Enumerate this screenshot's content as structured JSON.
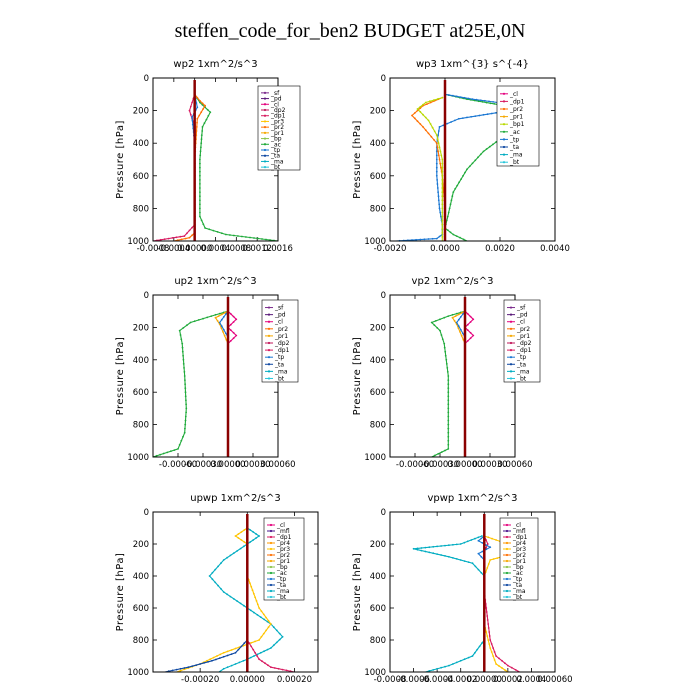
{
  "title": "steffen_code_for_ben2  BUDGET at25E,0N",
  "colors": {
    "sf": "#7b2a8c",
    "pd": "#5a1a7a",
    "cl": "#e4007c",
    "dp1": "#d81b60",
    "dp2": "#c2185b",
    "dp4": "#e0245e",
    "pr1": "#f6a800",
    "pr2": "#ff6f00",
    "pr3": "#ffc400",
    "pr4": "#ff9800",
    "bp": "#8bc34a",
    "bp1": "#b8d900",
    "ac": "#1faa3a",
    "tp": "#1976d2",
    "ta": "#0d47a1",
    "ma": "#00acc1",
    "bt": "#26c6da",
    "mfl": "#4a148c"
  },
  "chart_data": [
    {
      "type": "line",
      "title": "wp2   1xm^2/s^3",
      "ylabel": "Pressure  [hPa]",
      "xlim": [
        -0.0008,
        0.0016
      ],
      "ylim": [
        1000,
        0
      ],
      "xticks": [
        -0.0008,
        -0.0004,
        0,
        0.0004,
        0.0008,
        0.0012,
        0.0016
      ],
      "xtick_labels": [
        "-0.0008",
        "-0.0004",
        "0.00000",
        "0.0004",
        "0.0008",
        "0.0012",
        "0.0016"
      ],
      "yticks": [
        0,
        200,
        400,
        600,
        800,
        1000
      ],
      "legend": [
        "_sf",
        "_pd",
        "_cl",
        "_dp2",
        "_dp1",
        "_pr3",
        "_pr2",
        "_pr1",
        "_bp",
        "_ac",
        "_tp",
        "_ta",
        "_ma",
        "_bt"
      ],
      "series": [
        {
          "name": "_bp",
          "key": "ac",
          "x": [
            0,
            0.0001,
            0.0003,
            0.00015,
            0.0001,
            0.0001,
            0.0001,
            0.0002,
            0.0006,
            0.0016
          ],
          "y": [
            100,
            150,
            210,
            300,
            500,
            700,
            850,
            920,
            960,
            1000
          ]
        },
        {
          "name": "_pr2",
          "key": "pr2",
          "x": [
            0,
            0.0001,
            0.0002,
            5e-05,
            0,
            0,
            0,
            -0.0001,
            -0.0004
          ],
          "y": [
            100,
            140,
            170,
            250,
            500,
            800,
            950,
            980,
            1000
          ]
        },
        {
          "name": "_dp1",
          "key": "dp1",
          "x": [
            0,
            -5e-05,
            -0.0001,
            0,
            0,
            0,
            -0.0002,
            -0.0008
          ],
          "y": [
            100,
            150,
            200,
            300,
            600,
            900,
            970,
            1000
          ]
        },
        {
          "name": "_tp",
          "key": "tp",
          "x": [
            0,
            5e-05,
            -5e-05,
            0,
            0
          ],
          "y": [
            100,
            180,
            240,
            400,
            1000
          ]
        },
        {
          "name": "_sf",
          "key": "sf",
          "x": [
            0,
            0,
            0,
            0
          ],
          "y": [
            100,
            400,
            800,
            1000
          ]
        }
      ]
    },
    {
      "type": "line",
      "title": "wp3   1xm^{3} s^{-4}",
      "ylabel": "Pressure  [hPa]",
      "xlim": [
        -0.002,
        0.004
      ],
      "ylim": [
        1000,
        0
      ],
      "xticks": [
        -0.002,
        0,
        0.002,
        0.004
      ],
      "xtick_labels": [
        "-0.0020",
        "0.0000",
        "0.0020",
        "0.0040"
      ],
      "yticks": [
        0,
        200,
        400,
        600,
        800,
        1000
      ],
      "legend": [
        "_cl",
        "_dp1",
        "_pr2",
        "_pr1",
        "_bp1",
        "_ac",
        "_tp",
        "_ta",
        "_ma",
        "_bt"
      ],
      "series": [
        {
          "name": "_ac",
          "key": "ac",
          "x": [
            0,
            0.0008,
            0.0025,
            0.0031,
            0.0028,
            0.0022,
            0.0014,
            0.0008,
            0.0003,
            0.0001,
            0,
            0.0003,
            0.0008
          ],
          "y": [
            100,
            130,
            180,
            230,
            280,
            350,
            450,
            560,
            700,
            850,
            920,
            960,
            1000
          ]
        },
        {
          "name": "_tp",
          "key": "tp",
          "x": [
            0,
            0.001,
            0.0028,
            0.002,
            0.0005,
            -0.0002,
            -0.0003,
            -0.0003,
            -0.0002,
            -0.0001,
            -0.0001,
            -0.0003,
            -0.0018
          ],
          "y": [
            100,
            130,
            170,
            210,
            250,
            300,
            400,
            600,
            800,
            900,
            960,
            985,
            1000
          ]
        },
        {
          "name": "_pr2",
          "key": "pr2",
          "x": [
            -0.0001,
            -0.0008,
            -0.0012,
            -0.0008,
            -0.0003,
            -0.0001,
            0,
            0
          ],
          "y": [
            120,
            170,
            230,
            300,
            400,
            600,
            800,
            1000
          ]
        },
        {
          "name": "_bp1",
          "key": "bp1",
          "x": [
            -0.0001,
            -0.0007,
            -0.001,
            -0.0006,
            -0.0003,
            -0.0001,
            -0.0001
          ],
          "y": [
            120,
            150,
            190,
            260,
            350,
            500,
            1000
          ]
        },
        {
          "name": "_cl",
          "key": "cl",
          "x": [
            0,
            0,
            0,
            0
          ],
          "y": [
            100,
            400,
            800,
            1000
          ]
        }
      ]
    },
    {
      "type": "line",
      "title": "up2   1xm^2/s^3",
      "ylabel": "Pressure  [hPa]",
      "xlim": [
        -0.0009,
        0.0006
      ],
      "ylim": [
        1000,
        0
      ],
      "xticks": [
        -0.0006,
        -0.0003,
        0,
        0.0003,
        0.0006
      ],
      "xtick_labels": [
        "-0.00060",
        "-0.00030",
        "0.00000",
        "0.00030",
        "0.00060"
      ],
      "yticks": [
        0,
        200,
        400,
        600,
        800,
        1000
      ],
      "legend": [
        "_sf",
        "_pd",
        "_cl",
        "_pr2",
        "_pr1",
        "_dp2",
        "_dp1",
        "_tp",
        "_ta",
        "_ma",
        "_bt"
      ],
      "series": [
        {
          "name": "_dp2",
          "key": "ac",
          "x": [
            0,
            -0.0002,
            -0.00045,
            -0.00058,
            -0.00055,
            -0.00052,
            -0.0005,
            -0.00052,
            -0.0006,
            -0.0009
          ],
          "y": [
            100,
            130,
            170,
            220,
            300,
            500,
            700,
            850,
            950,
            1000
          ]
        },
        {
          "name": "_pr1",
          "key": "pr1",
          "x": [
            0,
            -0.00015,
            -0.0001,
            0,
            0
          ],
          "y": [
            100,
            140,
            180,
            300,
            1000
          ]
        },
        {
          "name": "_tp",
          "key": "tp",
          "x": [
            0,
            -0.0001,
            0,
            0
          ],
          "y": [
            100,
            170,
            260,
            1000
          ]
        },
        {
          "name": "_cl",
          "key": "cl",
          "x": [
            0,
            0.0001,
            0,
            0.0001,
            0
          ],
          "y": [
            100,
            150,
            200,
            250,
            300
          ]
        },
        {
          "name": "_sf",
          "key": "sf",
          "x": [
            0,
            0,
            0,
            0
          ],
          "y": [
            100,
            400,
            800,
            1000
          ]
        }
      ]
    },
    {
      "type": "line",
      "title": "vp2   1xm^2/s^3",
      "ylabel": "Pressure  [hPa]",
      "xlim": [
        -0.0009,
        0.0006
      ],
      "ylim": [
        1000,
        0
      ],
      "xticks": [
        -0.0006,
        -0.0003,
        0,
        0.0003,
        0.0006
      ],
      "xtick_labels": [
        "-0.00060",
        "-0.00030",
        "0.00000",
        "0.00030",
        "0.00060"
      ],
      "yticks": [
        0,
        200,
        400,
        600,
        800,
        1000
      ],
      "legend": [
        "_sf",
        "_pd",
        "_cl",
        "_pr2",
        "_pr1",
        "_dp2",
        "_dp1",
        "_tp",
        "_ta",
        "_ma",
        "_bt"
      ],
      "series": [
        {
          "name": "_dp2",
          "key": "ac",
          "x": [
            0,
            -0.0002,
            -0.0004,
            -0.0003,
            -0.00025,
            -0.0002,
            -0.0002,
            -0.0002,
            -0.0002,
            -0.0004
          ],
          "y": [
            100,
            130,
            170,
            220,
            300,
            500,
            700,
            850,
            950,
            1000
          ]
        },
        {
          "name": "_pr1",
          "key": "pr1",
          "x": [
            0,
            -0.00015,
            -0.0001,
            0,
            0
          ],
          "y": [
            100,
            140,
            180,
            300,
            1000
          ]
        },
        {
          "name": "_tp",
          "key": "tp",
          "x": [
            0,
            -0.0001,
            0,
            0
          ],
          "y": [
            100,
            170,
            260,
            1000
          ]
        },
        {
          "name": "_cl",
          "key": "cl",
          "x": [
            0,
            0.0001,
            0,
            0.0001,
            0
          ],
          "y": [
            100,
            150,
            200,
            250,
            300
          ]
        },
        {
          "name": "_sf",
          "key": "sf",
          "x": [
            0,
            0,
            0,
            0
          ],
          "y": [
            100,
            400,
            800,
            1000
          ]
        }
      ]
    },
    {
      "type": "line",
      "title": "upwp   1xm^2/s^3",
      "ylabel": "Pressure  [hPa]",
      "xlim": [
        -0.0004,
        0.0003
      ],
      "ylim": [
        1000,
        0
      ],
      "xticks": [
        -0.0002,
        0,
        0.0002
      ],
      "xtick_labels": [
        "-0.00020",
        "0.00000",
        "0.00020"
      ],
      "yticks": [
        0,
        200,
        400,
        600,
        800,
        1000
      ],
      "legend": [
        "_cl",
        "_mfl",
        "_dp1",
        "_pr4",
        "_pr3",
        "_pr2",
        "_pr1",
        "_bp",
        "_ac",
        "_tp",
        "_ta",
        "_ma",
        "_bt"
      ],
      "series": [
        {
          "name": "_ma",
          "key": "ma",
          "x": [
            0,
            5e-05,
            0,
            -0.0001,
            -0.00016,
            -0.0001,
            0,
            0.0001,
            0.00015,
            0.0001,
            0,
            -0.0001,
            -0.00012
          ],
          "y": [
            100,
            150,
            200,
            300,
            400,
            500,
            600,
            700,
            780,
            850,
            920,
            980,
            1000
          ]
        },
        {
          "name": "_pr3",
          "key": "pr3",
          "x": [
            0,
            -5e-05,
            0,
            0,
            5e-05,
            0.0001,
            5e-05,
            -0.0001,
            -0.0002,
            -0.0003
          ],
          "y": [
            100,
            150,
            200,
            400,
            600,
            700,
            800,
            880,
            950,
            1000
          ]
        },
        {
          "name": "_ta",
          "key": "ta",
          "x": [
            0,
            0,
            0,
            -5e-05,
            -0.00015,
            -0.00025,
            -0.00035
          ],
          "y": [
            100,
            500,
            800,
            880,
            930,
            970,
            1000
          ]
        },
        {
          "name": "_dp1",
          "key": "dp1",
          "x": [
            0,
            0,
            5e-05,
            0.0001,
            0.0002
          ],
          "y": [
            100,
            800,
            920,
            970,
            1000
          ]
        },
        {
          "name": "_cl",
          "key": "cl",
          "x": [
            0,
            0,
            0,
            0
          ],
          "y": [
            100,
            400,
            800,
            1000
          ]
        }
      ]
    },
    {
      "type": "line",
      "title": "vpwp   1xm^2/s^3",
      "ylabel": "Pressure  [hPa]",
      "xlim": [
        -0.0008,
        0.0006
      ],
      "ylim": [
        1000,
        0
      ],
      "xticks": [
        -0.0008,
        -0.0006,
        -0.0004,
        -0.0002,
        0,
        0.0002,
        0.0004,
        0.0006
      ],
      "xtick_labels": [
        "-0.0008",
        "-0.0006",
        "-0.0004",
        "-0.0002",
        "0.00000",
        "0.0002",
        "0.0004",
        "0.00060"
      ],
      "yticks": [
        0,
        200,
        400,
        600,
        800,
        1000
      ],
      "legend": [
        "_cl",
        "_mfl",
        "_dp1",
        "_pr4",
        "_pr3",
        "_pr2",
        "_pr1",
        "_bp",
        "_ac",
        "_tp",
        "_ta",
        "_ma",
        "_bt"
      ],
      "series": [
        {
          "name": "_ma",
          "key": "ma",
          "x": [
            -2e-05,
            -0.0002,
            -0.0006,
            -0.0003,
            -0.0001,
            0,
            0,
            0,
            -0.0001,
            -0.0003,
            -0.0005
          ],
          "y": [
            150,
            200,
            230,
            280,
            320,
            400,
            600,
            800,
            900,
            960,
            1000
          ]
        },
        {
          "name": "_pr3",
          "key": "pr3",
          "x": [
            0,
            0.0002,
            0.0004,
            0.0002,
            5e-05,
            0,
            0,
            5e-05,
            0.0001,
            0.0002
          ],
          "y": [
            150,
            200,
            230,
            270,
            300,
            400,
            700,
            850,
            950,
            1000
          ]
        },
        {
          "name": "_dp1",
          "key": "dp1",
          "x": [
            0,
            3e-05,
            0,
            0,
            5e-05,
            0.0001,
            0.0002,
            0.0003
          ],
          "y": [
            150,
            200,
            250,
            500,
            800,
            900,
            960,
            1000
          ]
        },
        {
          "name": "_tp",
          "key": "tp",
          "x": [
            0,
            -5e-05,
            5e-05,
            -5e-05,
            0,
            0
          ],
          "y": [
            150,
            180,
            220,
            260,
            300,
            1000
          ]
        },
        {
          "name": "_cl",
          "key": "cl",
          "x": [
            0,
            0,
            0,
            0
          ],
          "y": [
            100,
            400,
            800,
            1000
          ]
        }
      ]
    }
  ]
}
